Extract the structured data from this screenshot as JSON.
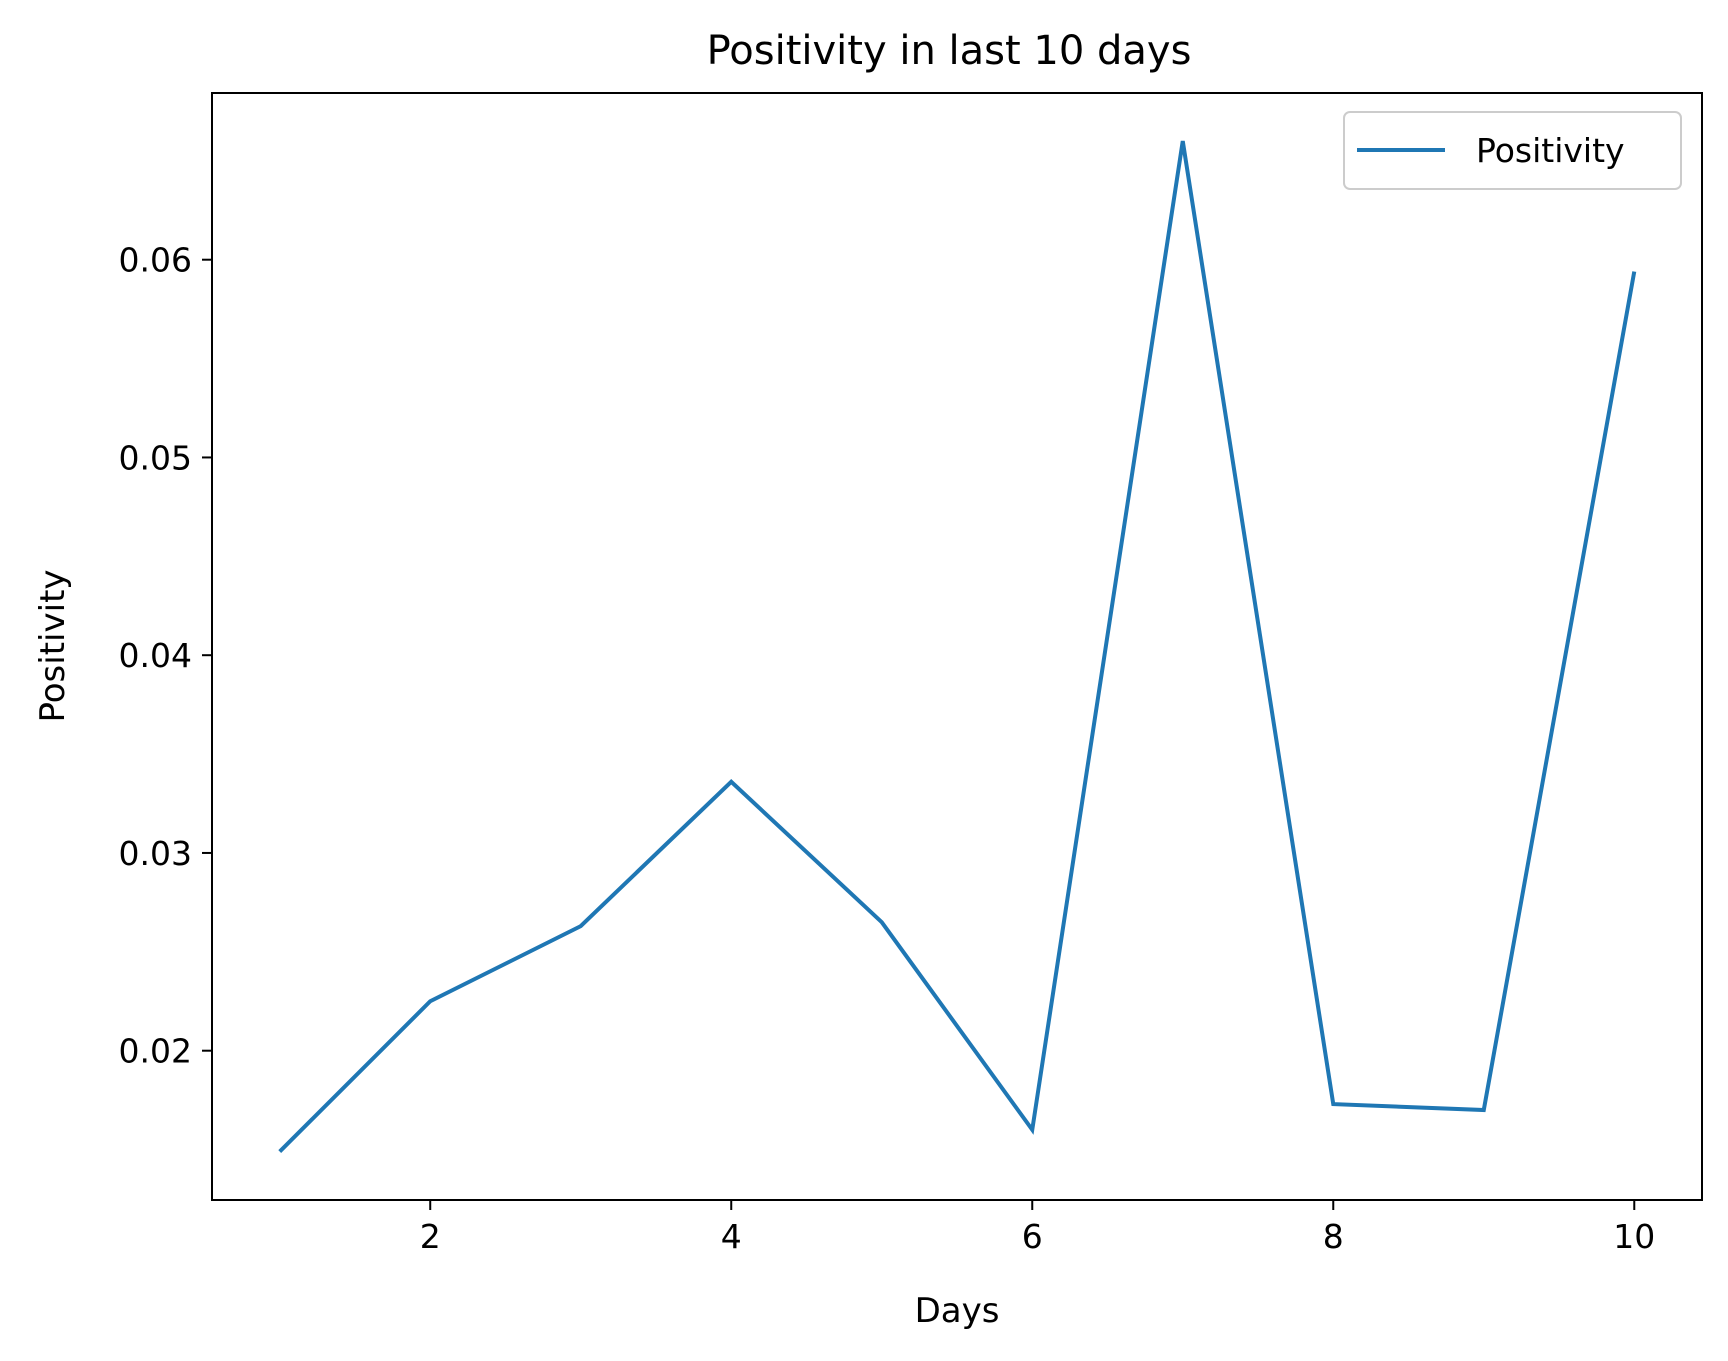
{
  "chart_data": {
    "type": "line",
    "title": "Positivity in last 10 days",
    "xlabel": "Days",
    "ylabel": "Positivity",
    "x": [
      1,
      2,
      3,
      4,
      5,
      6,
      7,
      8,
      9,
      10
    ],
    "series": [
      {
        "name": "Positivity",
        "color": "#1f77b4",
        "values": [
          0.0149,
          0.0225,
          0.0263,
          0.0336,
          0.0265,
          0.016,
          0.066,
          0.0173,
          0.017,
          0.0594
        ]
      }
    ],
    "xticks": [
      2,
      4,
      6,
      8,
      10
    ],
    "yticks": [
      0.02,
      0.03,
      0.04,
      0.05,
      0.06
    ],
    "xtick_labels": [
      "2",
      "4",
      "6",
      "8",
      "10"
    ],
    "ytick_labels": [
      "0.02",
      "0.03",
      "0.04",
      "0.05",
      "0.06"
    ],
    "xlim": [
      0.55,
      10.45
    ],
    "ylim": [
      0.01245,
      0.06843
    ],
    "grid": false,
    "legend_position": "upper right"
  }
}
